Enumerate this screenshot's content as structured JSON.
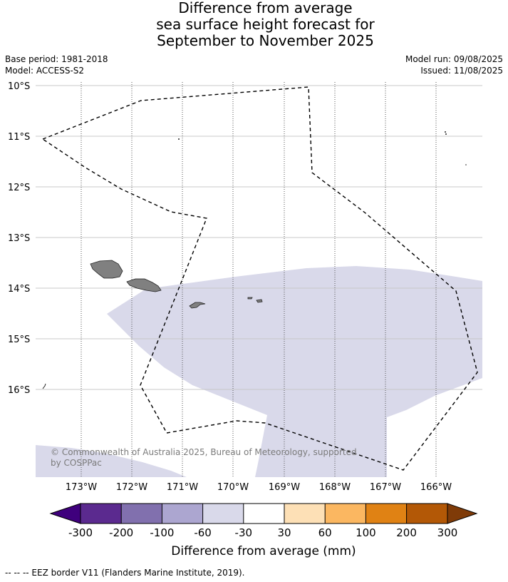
{
  "title": {
    "line1": "Difference from average",
    "line2": "sea surface height forecast for",
    "line3": "September to November 2025"
  },
  "meta": {
    "base_period": "Base period: 1981-2018",
    "model": "Model: ACCESS-S2",
    "model_run": "Model run: 09/08/2025",
    "issued": "Issued: 11/08/2025"
  },
  "map": {
    "lat_labels": [
      "10°S",
      "11°S",
      "12°S",
      "13°S",
      "14°S",
      "15°S",
      "16°S"
    ],
    "lon_labels": [
      "173°W",
      "172°W",
      "171°W",
      "170°W",
      "169°W",
      "168°W",
      "167°W",
      "166°W"
    ],
    "anomaly_fill_color": "#d9d9ea",
    "land_color": "#808080",
    "credit_line1": "© Commonwealth of Australia 2025, Bureau of Meteorology, supported",
    "credit_line2": "by COSPPac"
  },
  "colorbar": {
    "colors": [
      "#3f007d",
      "#5b2a8f",
      "#8170ae",
      "#aca6d0",
      "#d9d9ea",
      "#ffffff",
      "#fde0b6",
      "#fbb761",
      "#e08214",
      "#b35806",
      "#7f3b08"
    ],
    "labels": [
      "-300",
      "-200",
      "-100",
      "-60",
      "-30",
      "30",
      "60",
      "100",
      "200",
      "300"
    ],
    "title": "Difference from average (mm)"
  },
  "footnote": "--  --  -- EEZ border V11 (Flanders Marine Institute, 2019)."
}
